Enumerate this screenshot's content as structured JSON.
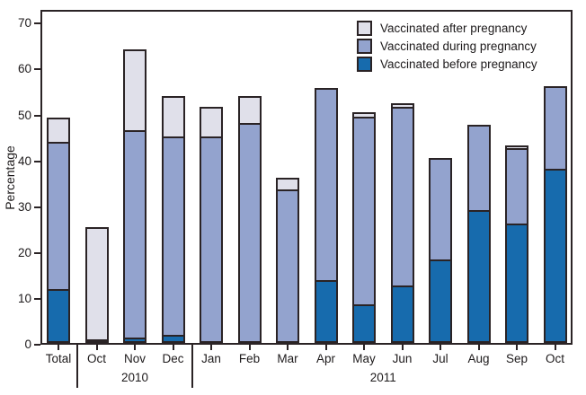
{
  "chart_data": {
    "type": "bar",
    "stacked": true,
    "title": "",
    "xlabel": "",
    "ylabel": "Percentage",
    "ylim": [
      0,
      70
    ],
    "yticks": [
      0,
      10,
      20,
      30,
      40,
      50,
      60,
      70
    ],
    "grid": false,
    "categories": [
      "Total",
      "Oct",
      "Nov",
      "Dec",
      "Jan",
      "Feb",
      "Mar",
      "Apr",
      "May",
      "Jun",
      "Jul",
      "Aug",
      "Sep",
      "Oct"
    ],
    "group_labels": [
      {
        "label": "2010",
        "span": [
          1,
          3
        ]
      },
      {
        "label": "2011",
        "span": [
          4,
          13
        ]
      }
    ],
    "series": [
      {
        "name": "Vaccinated before pregnancy",
        "color": "#176bad",
        "values": [
          11.7,
          0.7,
          1.2,
          1.7,
          0,
          0,
          0,
          13.7,
          8.5,
          12.6,
          18.2,
          29.0,
          26.0,
          38.0
        ]
      },
      {
        "name": "Vaccinated during pregnancy",
        "color": "#93a3ce",
        "values": [
          32.1,
          0,
          45.2,
          43.3,
          45.0,
          47.9,
          33.5,
          41.8,
          40.8,
          38.8,
          22.1,
          18.5,
          16.4,
          18.0
        ]
      },
      {
        "name": "Vaccinated after pregnancy",
        "color": "#e0e0ea",
        "values": [
          5.3,
          24.6,
          17.6,
          8.8,
          6.5,
          5.9,
          2.6,
          0,
          1.0,
          0.9,
          0,
          0,
          0.6,
          0
        ]
      }
    ],
    "legend": [
      "Vaccinated after pregnancy",
      "Vaccinated during pregnancy",
      "Vaccinated before pregnancy"
    ],
    "legend_position": "top-right-inside"
  }
}
